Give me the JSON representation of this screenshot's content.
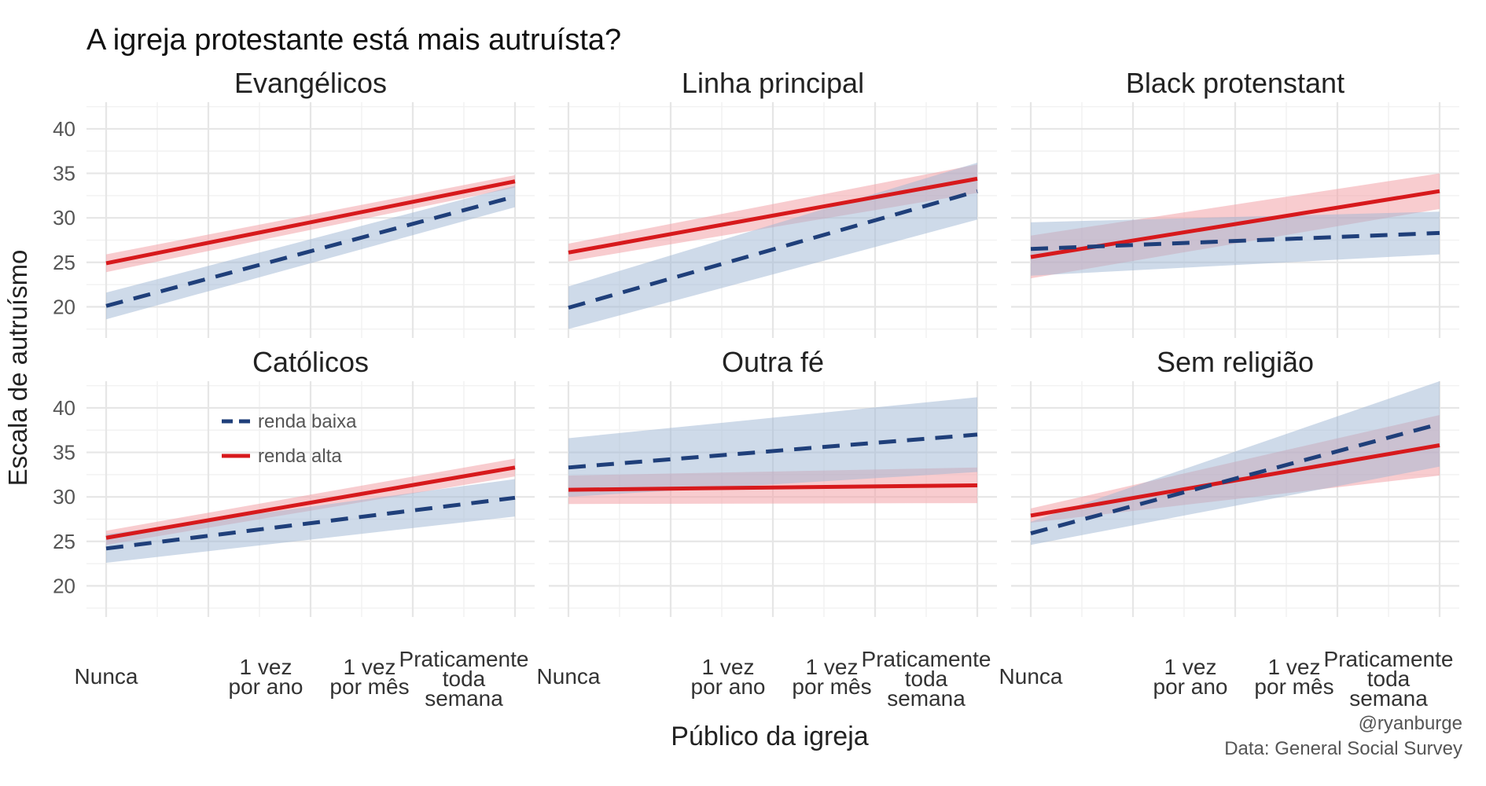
{
  "chart_data": {
    "type": "line",
    "title": "A igreja protestante está mais autruísta?",
    "xlabel": "Público da igreja",
    "ylabel": "Escala de autruísmo",
    "ylim": [
      16.5,
      43
    ],
    "yticks": [
      20,
      25,
      30,
      35,
      40
    ],
    "x_tick_labels": [
      [
        "Nunca"
      ],
      [
        "1 vez",
        "por ano"
      ],
      [
        "1 vez",
        "por mês"
      ],
      [
        "Praticamente",
        "toda",
        "semana"
      ]
    ],
    "x_range": [
      0,
      4
    ],
    "grid": true,
    "legend": {
      "placement": "inside top-left of Católicos panel",
      "entries": [
        {
          "name": "renda baixa",
          "color": "#1f3f7a",
          "dash": "dashed"
        },
        {
          "name": "renda alta",
          "color": "#d7191c",
          "dash": "solid"
        }
      ]
    },
    "panels": [
      {
        "name": "Evangélicos",
        "series": [
          {
            "name": "renda baixa",
            "start": 20.1,
            "end": 32.4,
            "ci_start": [
              18.6,
              21.6
            ],
            "ci_end": [
              31.2,
              33.6
            ]
          },
          {
            "name": "renda alta",
            "start": 24.9,
            "end": 34.1,
            "ci_start": [
              23.9,
              25.9
            ],
            "ci_end": [
              33.4,
              34.8
            ]
          }
        ]
      },
      {
        "name": "Linha principal",
        "series": [
          {
            "name": "renda baixa",
            "start": 19.9,
            "end": 33.0,
            "ci_start": [
              17.5,
              22.3
            ],
            "ci_end": [
              29.8,
              36.2
            ]
          },
          {
            "name": "renda alta",
            "start": 26.1,
            "end": 34.4,
            "ci_start": [
              25.1,
              27.1
            ],
            "ci_end": [
              32.8,
              36.0
            ]
          }
        ]
      },
      {
        "name": "Black protenstant",
        "series": [
          {
            "name": "renda baixa",
            "start": 26.5,
            "end": 28.3,
            "ci_start": [
              23.5,
              29.5
            ],
            "ci_end": [
              25.9,
              30.7
            ]
          },
          {
            "name": "renda alta",
            "start": 25.6,
            "end": 33.0,
            "ci_start": [
              23.2,
              28.0
            ],
            "ci_end": [
              31.0,
              35.0
            ]
          }
        ]
      },
      {
        "name": "Católicos",
        "series": [
          {
            "name": "renda baixa",
            "start": 24.2,
            "end": 29.9,
            "ci_start": [
              22.6,
              25.8
            ],
            "ci_end": [
              27.8,
              32.0
            ]
          },
          {
            "name": "renda alta",
            "start": 25.4,
            "end": 33.3,
            "ci_start": [
              24.6,
              26.2
            ],
            "ci_end": [
              32.3,
              34.3
            ]
          }
        ]
      },
      {
        "name": "Outra fé",
        "series": [
          {
            "name": "renda baixa",
            "start": 33.3,
            "end": 37.0,
            "ci_start": [
              30.0,
              36.6
            ],
            "ci_end": [
              32.8,
              41.2
            ]
          },
          {
            "name": "renda alta",
            "start": 30.8,
            "end": 31.3,
            "ci_start": [
              29.2,
              32.4
            ],
            "ci_end": [
              29.3,
              33.3
            ]
          }
        ]
      },
      {
        "name": "Sem religião",
        "series": [
          {
            "name": "renda baixa",
            "start": 25.9,
            "end": 38.2,
            "ci_start": [
              24.6,
              27.2
            ],
            "ci_end": [
              33.4,
              43.0
            ]
          },
          {
            "name": "renda alta",
            "start": 27.9,
            "end": 35.8,
            "ci_start": [
              27.1,
              28.7
            ],
            "ci_end": [
              32.4,
              39.2
            ]
          }
        ]
      }
    ]
  },
  "credit": {
    "handle": "@ryanburge",
    "source": "Data: General Social Survey"
  },
  "colors": {
    "low_line": "#1f3f7a",
    "low_band": "#9db5d3",
    "high_line": "#d7191c",
    "high_band": "#f3a3a8",
    "grid_major": "#e6e6e6",
    "grid_minor": "#f2f2f2"
  }
}
